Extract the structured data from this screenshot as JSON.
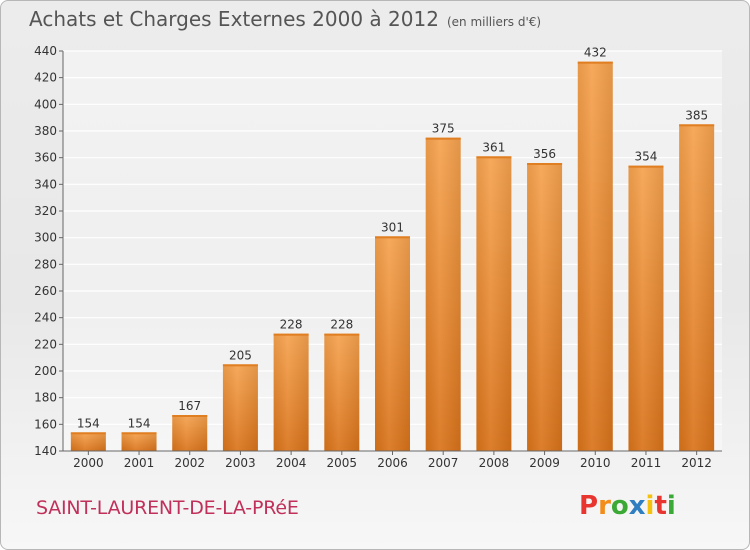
{
  "header": {
    "title": "Achats et Charges Externes 2000 à 2012",
    "unit": "(en milliers d'€)"
  },
  "footer": {
    "commune": "SAINT-LAURENT-DE-LA-PRéE",
    "logo_letters": [
      "P",
      "r",
      "o",
      "x",
      "i",
      "t",
      "i"
    ],
    "logo_colors": [
      "#e8352f",
      "#f28d1a",
      "#3ba935",
      "#2f7ec1",
      "#f4c20d",
      "#e8352f",
      "#3ba935"
    ]
  },
  "chart_data": {
    "type": "bar",
    "categories": [
      "2000",
      "2001",
      "2002",
      "2003",
      "2004",
      "2005",
      "2006",
      "2007",
      "2008",
      "2009",
      "2010",
      "2011",
      "2012"
    ],
    "values": [
      154,
      154,
      167,
      205,
      228,
      228,
      301,
      375,
      361,
      356,
      432,
      354,
      385
    ],
    "title": "Achats et Charges Externes 2000 à 2012",
    "ylim": [
      140,
      440
    ],
    "yticks": [
      140,
      160,
      180,
      200,
      220,
      240,
      260,
      280,
      300,
      320,
      340,
      360,
      380,
      400,
      420,
      440
    ],
    "grid": true,
    "bar_color": "#f0963a"
  }
}
